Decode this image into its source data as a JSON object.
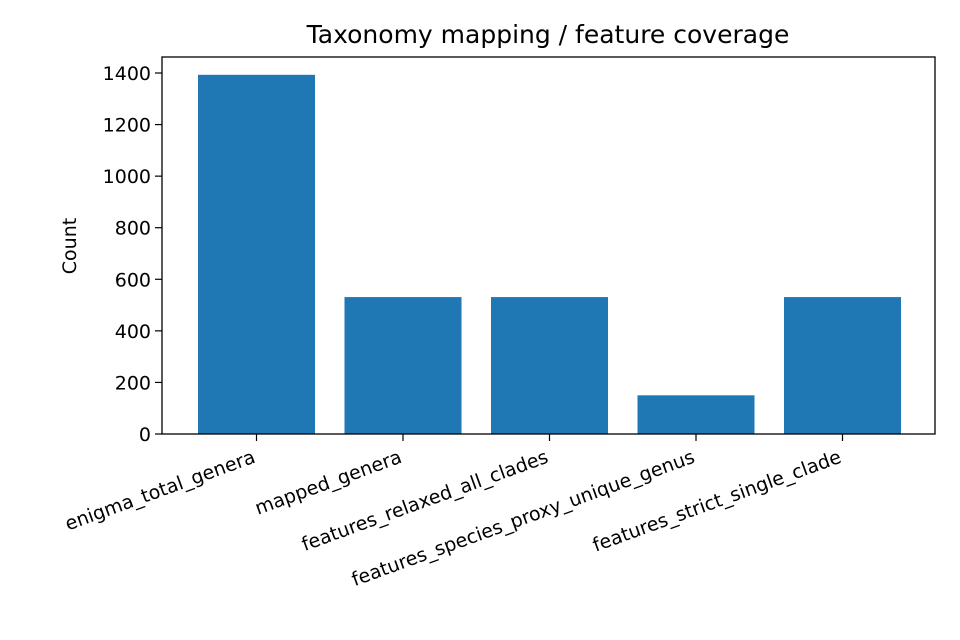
{
  "chart_data": {
    "type": "bar",
    "title": "Taxonomy mapping / feature coverage",
    "ylabel": "Count",
    "xlabel": "",
    "categories": [
      "enigma_total_genera",
      "mapped_genera",
      "features_relaxed_all_clades",
      "features_species_proxy_unique_genus",
      "features_strict_single_clade"
    ],
    "values": [
      1393,
      531,
      531,
      150,
      531
    ],
    "ylim": [
      0,
      1400
    ],
    "yticks": [
      0,
      200,
      400,
      600,
      800,
      1000,
      1200,
      1400
    ],
    "bar_color": "#1f77b4",
    "grid": false,
    "x_tick_rotation": "rotated ~20° counter-clockwise"
  }
}
